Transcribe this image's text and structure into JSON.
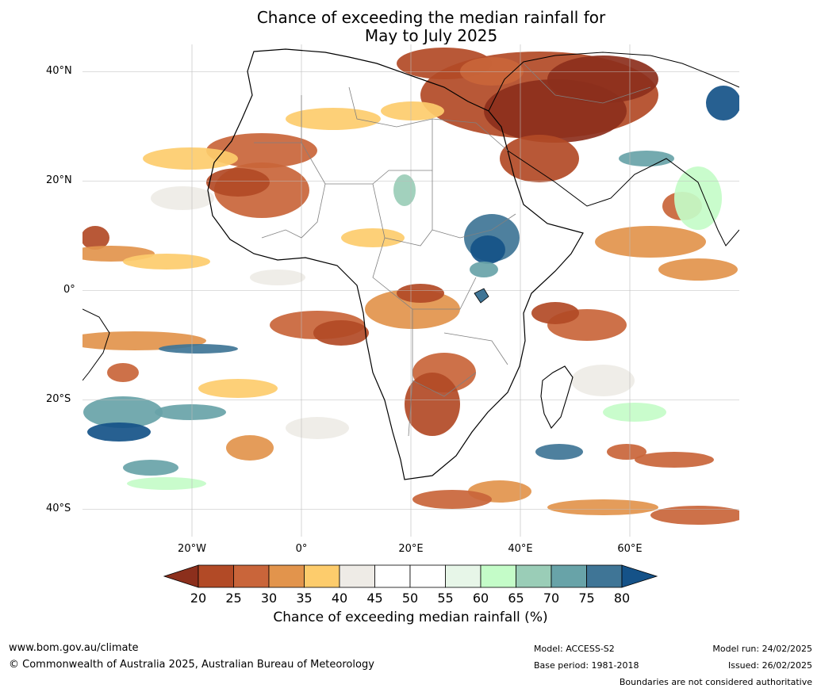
{
  "header": {
    "title_line1": "Chance of exceeding the median rainfall for",
    "title_line2": "May to July 2025"
  },
  "map": {
    "region": "Africa",
    "lat_labels": [
      "40°N",
      "20°N",
      "0°",
      "20°S",
      "40°S"
    ],
    "lon_labels": [
      "20°W",
      "0°",
      "20°E",
      "40°E",
      "60°E"
    ],
    "extent": {
      "lon_min": -40,
      "lon_max": 80,
      "lat_min": -45,
      "lat_max": 45
    },
    "gridlines": true
  },
  "colorbar": {
    "title": "Chance of exceeding median rainfall (%)",
    "ticks": [
      "20",
      "25",
      "30",
      "35",
      "40",
      "45",
      "50",
      "55",
      "60",
      "65",
      "70",
      "75",
      "80"
    ],
    "colors": [
      "#8c2f1c",
      "#b24a26",
      "#c9653a",
      "#e2944c",
      "#fdcc6c",
      "#eeebe6",
      "#ffffff",
      "#ffffff",
      "#e7f6e8",
      "#c4fcc8",
      "#9acdb7",
      "#68a3a8",
      "#3f7596",
      "#155288"
    ],
    "extend": "both"
  },
  "footer": {
    "website": "www.bom.gov.au/climate",
    "copyright": "© Commonwealth of Australia 2025, Australian Bureau of Meteorology",
    "model": "Model: ACCESS-S2",
    "base_period": "Base period: 1981-2018",
    "model_run": "Model run: 24/02/2025",
    "issued": "Issued: 26/02/2025",
    "disclaimer": "Boundaries are not considered authoritative"
  }
}
